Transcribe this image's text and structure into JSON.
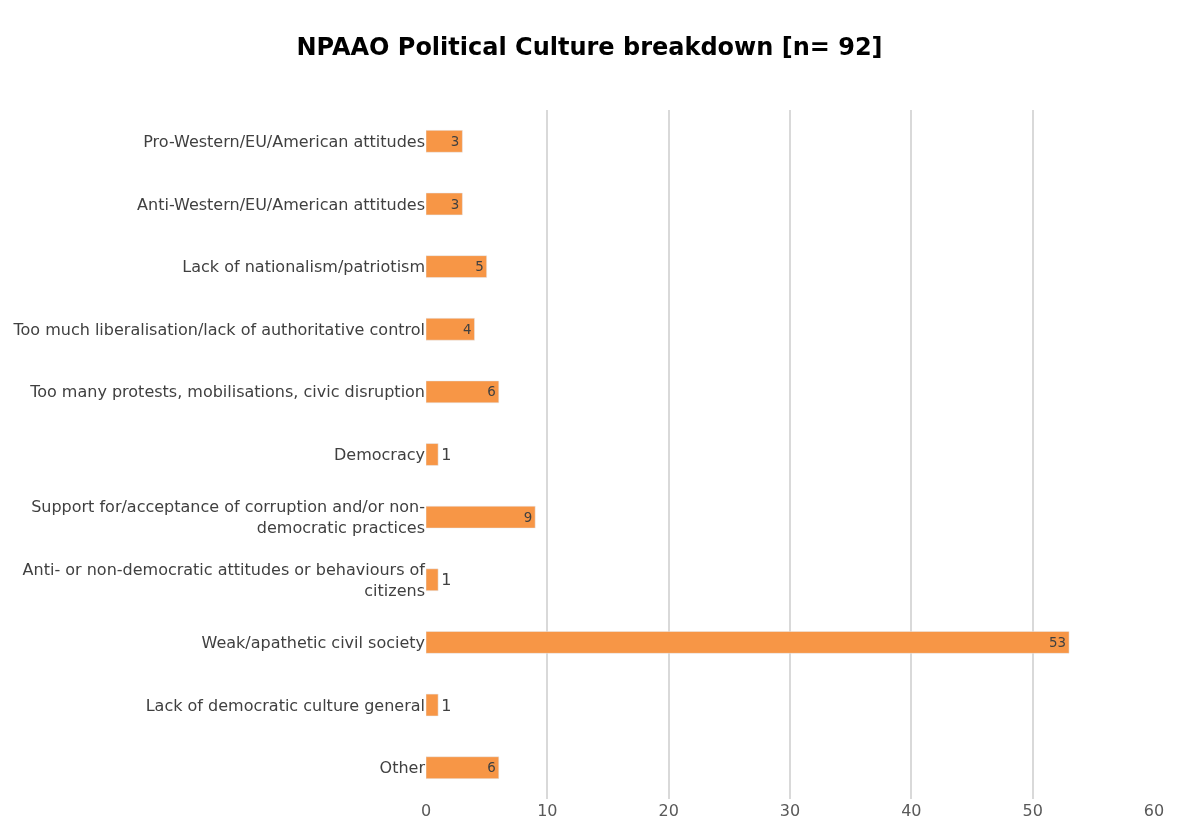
{
  "chart_data": {
    "type": "bar",
    "orientation": "horizontal",
    "title": "NPAAO Political Culture breakdown [n= 92]",
    "categories": [
      "Pro-Western/EU/American attitudes",
      "Anti-Western/EU/American attitudes",
      "Lack of nationalism/patriotism",
      "Too much liberalisation/lack of authoritative control",
      "Too many protests, mobilisations, civic disruption",
      "Democracy",
      "Support for/acceptance of corruption and/or non-democratic practices",
      "Anti- or non-democratic attitudes or behaviours of citizens",
      "Weak/apathetic civil society",
      "Lack of democratic culture general",
      "Other"
    ],
    "values": [
      3,
      3,
      5,
      4,
      6,
      1,
      9,
      1,
      53,
      1,
      6
    ],
    "color": "#f79646",
    "xlim": [
      0,
      60
    ],
    "xticks": [
      0,
      10,
      20,
      30,
      40,
      50,
      60
    ],
    "grid": "x",
    "data_labels": true
  }
}
